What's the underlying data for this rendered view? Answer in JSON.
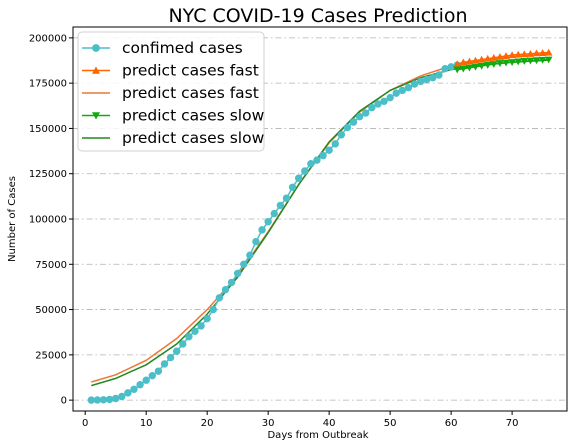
{
  "chart_data": {
    "type": "line",
    "title": "NYC COVID-19 Cases Prediction",
    "xlabel": "Days from Outbreak",
    "ylabel": "Number of Cases",
    "xlim": [
      -2,
      79
    ],
    "ylim": [
      -6000,
      206000
    ],
    "x_ticks": [
      0,
      10,
      20,
      30,
      40,
      50,
      60,
      70
    ],
    "y_ticks": [
      0,
      25000,
      50000,
      75000,
      100000,
      125000,
      150000,
      175000,
      200000
    ],
    "grid": "horizontal dash-dot",
    "legend_position": "top-left",
    "series": [
      {
        "name": "confimed cases",
        "color": "#4bbec8",
        "marker": "circle",
        "x": [
          1,
          2,
          3,
          4,
          5,
          6,
          7,
          8,
          9,
          10,
          11,
          12,
          13,
          14,
          15,
          16,
          17,
          18,
          19,
          20,
          21,
          22,
          23,
          24,
          25,
          26,
          27,
          28,
          29,
          30,
          31,
          32,
          33,
          34,
          35,
          36,
          37,
          38,
          39,
          40,
          41,
          42,
          43,
          44,
          45,
          46,
          47,
          48,
          49,
          50,
          51,
          52,
          53,
          54,
          55,
          56,
          57,
          58,
          59,
          60,
          61
        ],
        "y": [
          0,
          100,
          200,
          400,
          900,
          2000,
          4000,
          6000,
          8500,
          11000,
          13500,
          16000,
          20000,
          23500,
          27000,
          31000,
          35000,
          38000,
          41000,
          45000,
          50000,
          56500,
          61000,
          65000,
          70000,
          75000,
          80000,
          87500,
          94000,
          98500,
          103000,
          107500,
          111500,
          117500,
          122500,
          126500,
          130500,
          132500,
          135000,
          138000,
          141500,
          146500,
          150500,
          153500,
          156500,
          158500,
          161500,
          163500,
          165000,
          167000,
          169500,
          171000,
          172500,
          174500,
          176000,
          177000,
          178000,
          179500,
          183000,
          184000,
          185000
        ]
      },
      {
        "name": "predict cases fast",
        "color": "#ff6600",
        "marker": "triangle-up",
        "x": [
          61,
          62,
          63,
          64,
          65,
          66,
          67,
          68,
          69,
          70,
          71,
          72,
          73,
          74,
          75,
          76
        ],
        "y": [
          185500,
          186500,
          187000,
          187500,
          188000,
          188500,
          189000,
          189500,
          190000,
          190500,
          190800,
          191000,
          191200,
          191500,
          191700,
          191900
        ]
      },
      {
        "name": "predict cases fast",
        "color": "#ee7733",
        "marker": "none",
        "x": [
          1,
          5,
          10,
          15,
          20,
          25,
          30,
          35,
          40,
          45,
          50,
          55,
          60,
          65,
          70,
          75,
          76
        ],
        "y": [
          10000,
          14000,
          22000,
          34000,
          50000,
          69000,
          93000,
          119000,
          142000,
          159000,
          171000,
          179000,
          184500,
          187500,
          189500,
          191000,
          191200
        ]
      },
      {
        "name": "predict cases slow",
        "color": "#11aa11",
        "marker": "triangle-down",
        "x": [
          61,
          62,
          63,
          64,
          65,
          66,
          67,
          68,
          69,
          70,
          71,
          72,
          73,
          74,
          75,
          76
        ],
        "y": [
          182500,
          183000,
          183500,
          184000,
          184500,
          185000,
          185500,
          186000,
          186300,
          186600,
          186900,
          187200,
          187400,
          187600,
          187800,
          188000
        ]
      },
      {
        "name": "predict cases slow",
        "color": "#228822",
        "marker": "none",
        "x": [
          1,
          5,
          10,
          15,
          20,
          25,
          30,
          35,
          40,
          45,
          50,
          55,
          60,
          65,
          70,
          75,
          76
        ],
        "y": [
          8000,
          12000,
          19500,
          31000,
          47500,
          68000,
          92500,
          119000,
          142500,
          159500,
          171000,
          178000,
          182500,
          185000,
          186500,
          187500,
          187700
        ]
      }
    ]
  }
}
